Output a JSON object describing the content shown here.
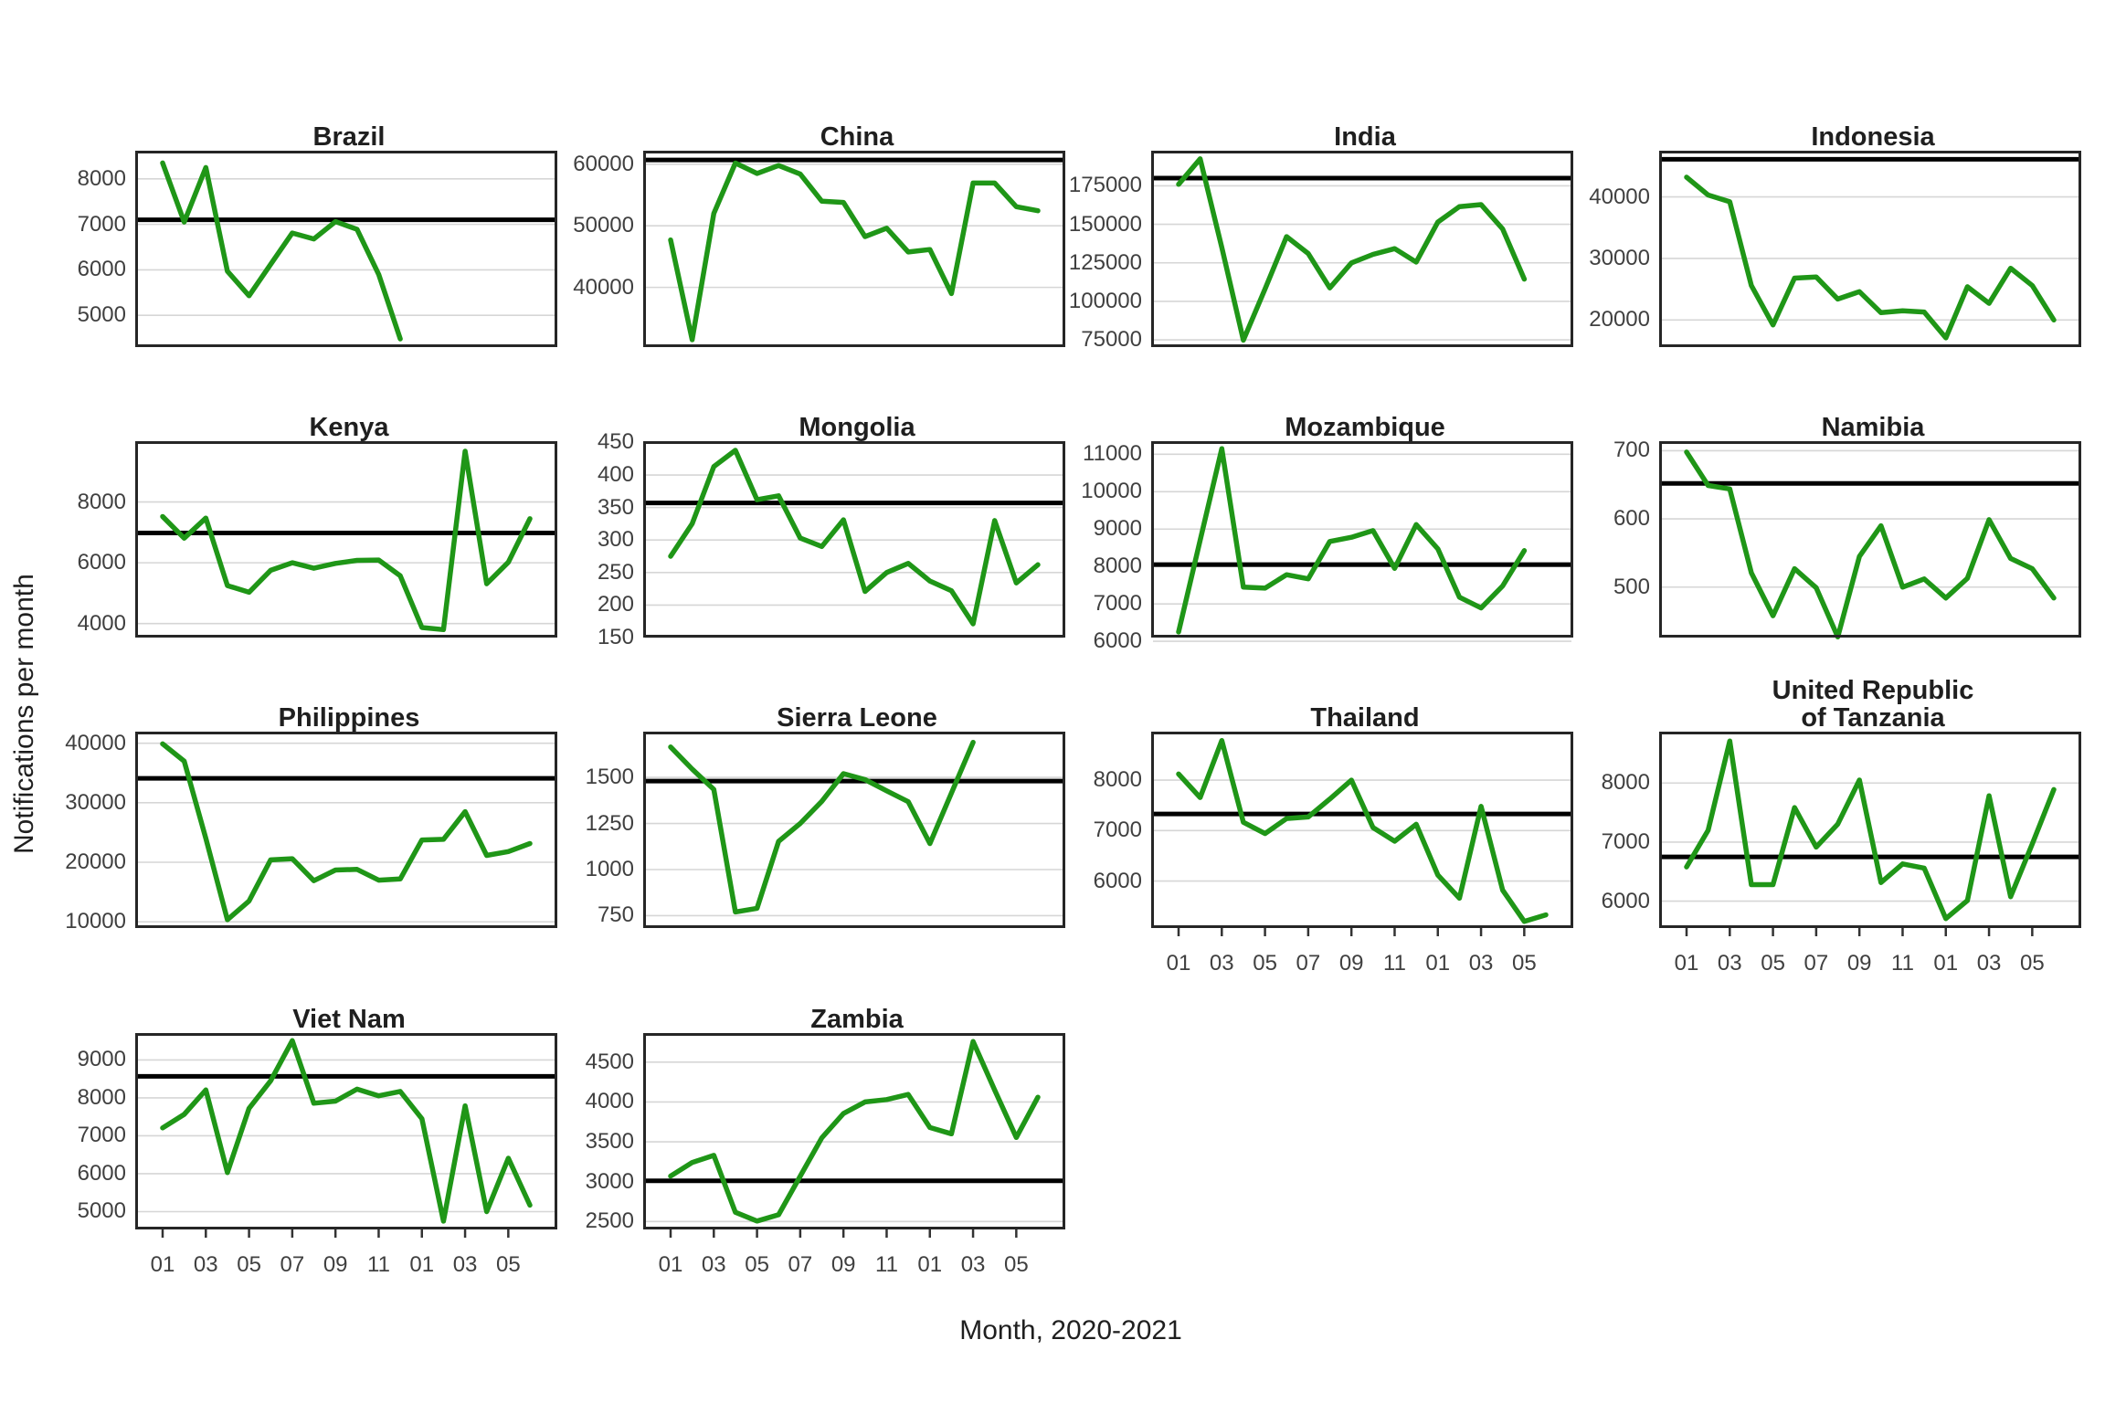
{
  "figure": {
    "y_axis_title": "Notifications per month",
    "x_axis_title": "Month, 2020-2021"
  },
  "chart_data": {
    "type": "line",
    "title": "",
    "xlabel": "Month, 2020-2021",
    "ylabel": "Notifications per month",
    "legend_position": "none",
    "grid": "horizontal-major",
    "series_color": "#1f9617",
    "baseline_color": "#000000",
    "n_slots": 18,
    "x_tick_labels": [
      "01",
      "03",
      "05",
      "07",
      "09",
      "11",
      "01",
      "03",
      "05"
    ],
    "x_tick_slots": [
      0,
      2,
      4,
      6,
      8,
      10,
      12,
      14,
      16
    ],
    "facets": [
      {
        "title_lines": [
          "Brazil"
        ],
        "yticks": [
          8000,
          7000,
          6000,
          5000
        ],
        "ylim": [
          4300,
          8620
        ],
        "baseline": 7100,
        "values": [
          8350,
          7050,
          8250,
          5970,
          5430,
          6120,
          6810,
          6680,
          7060,
          6890,
          5900,
          4480
        ],
        "show_x_axis": false
      },
      {
        "title_lines": [
          "China"
        ],
        "yticks": [
          60000,
          50000,
          40000
        ],
        "ylim": [
          30300,
          62200
        ],
        "baseline": 60700,
        "values": [
          47700,
          31500,
          52000,
          60200,
          58500,
          59800,
          58400,
          54000,
          53800,
          48250,
          49620,
          45750,
          46150,
          39000,
          56950,
          56950,
          53100,
          52450
        ],
        "show_x_axis": false
      },
      {
        "title_lines": [
          "India"
        ],
        "yticks": [
          175000,
          150000,
          125000,
          100000,
          75000
        ],
        "ylim": [
          70300,
          197800
        ],
        "baseline": 180000,
        "values": [
          176000,
          192500,
          135000,
          74800,
          108000,
          142000,
          131000,
          108700,
          125000,
          130500,
          134200,
          125500,
          151500,
          161500,
          162800,
          147000,
          114400
        ],
        "show_x_axis": false
      },
      {
        "title_lines": [
          "Indonesia"
        ],
        "yticks": [
          40000,
          30000,
          20000
        ],
        "ylim": [
          15600,
          47500
        ],
        "baseline": 46100,
        "values": [
          43200,
          40300,
          39200,
          25600,
          19200,
          26800,
          27000,
          23400,
          24600,
          21200,
          21500,
          21300,
          17100,
          25400,
          22700,
          28400,
          25600,
          20000
        ],
        "show_x_axis": false
      },
      {
        "title_lines": [
          "Kenya"
        ],
        "yticks": [
          8000,
          6000,
          4000
        ],
        "ylim": [
          3540,
          10000
        ],
        "baseline": 6980,
        "values": [
          7520,
          6810,
          7470,
          5250,
          5030,
          5750,
          6000,
          5820,
          5980,
          6080,
          6090,
          5570,
          3870,
          3800,
          9670,
          5310,
          6020,
          7450
        ],
        "show_x_axis": false
      },
      {
        "title_lines": [
          "Mongolia"
        ],
        "yticks": [
          450,
          400,
          350,
          300,
          250,
          200,
          150
        ],
        "ylim": [
          150,
          452
        ],
        "baseline": 357,
        "values": [
          275,
          325,
          413,
          438,
          362,
          368,
          303,
          290,
          331,
          221,
          250,
          264,
          237,
          222,
          171,
          330,
          234,
          262
        ],
        "show_x_axis": false
      },
      {
        "title_lines": [
          "Mozambique"
        ],
        "yticks": [
          11000,
          10000,
          9000,
          8000,
          7000,
          6000
        ],
        "ylim": [
          6100,
          11350
        ],
        "baseline": 8050,
        "values": [
          6250,
          8700,
          11150,
          7450,
          7420,
          7780,
          7670,
          8670,
          8780,
          8960,
          7950,
          9120,
          8470,
          7180,
          6890,
          7480,
          8425
        ],
        "show_x_axis": false
      },
      {
        "title_lines": [
          "Namibia"
        ],
        "yticks": [
          700,
          600,
          500
        ],
        "ylim": [
          426,
          714
        ],
        "baseline": 652,
        "values": [
          698,
          649,
          644,
          521,
          458,
          527,
          499,
          427,
          545,
          590,
          500,
          512,
          484,
          513,
          599,
          542,
          527,
          484
        ],
        "show_x_axis": false
      },
      {
        "title_lines": [
          "Philippines"
        ],
        "yticks": [
          40000,
          30000,
          20000,
          10000
        ],
        "ylim": [
          8950,
          41950
        ],
        "baseline": 34100,
        "values": [
          39900,
          37000,
          24000,
          10350,
          13500,
          20400,
          20600,
          16900,
          18700,
          18800,
          17000,
          17200,
          23750,
          23850,
          28500,
          21150,
          21800,
          23150
        ],
        "show_x_axis": false
      },
      {
        "title_lines": [
          "Sierra Leone"
        ],
        "yticks": [
          1500,
          1250,
          1000,
          750
        ],
        "ylim": [
          683,
          1748
        ],
        "baseline": 1480,
        "values": [
          1665,
          1545,
          1435,
          770,
          790,
          1153,
          1250,
          1370,
          1520,
          1488,
          1427,
          1368,
          1141,
          1415,
          1690
        ],
        "show_x_axis": false
      },
      {
        "title_lines": [
          "Thailand"
        ],
        "yticks": [
          8000,
          7000,
          6000
        ],
        "ylim": [
          5070,
          8960
        ],
        "baseline": 7330,
        "values": [
          8120,
          7655,
          8785,
          7165,
          6940,
          7240,
          7270,
          7625,
          8000,
          7060,
          6790,
          7125,
          6120,
          5660,
          7480,
          5820,
          5200,
          5330
        ],
        "show_x_axis": true
      },
      {
        "title_lines": [
          "United Republic",
          "of Tanzania"
        ],
        "yticks": [
          8000,
          7000,
          6000
        ],
        "ylim": [
          5545,
          8870
        ],
        "baseline": 6750,
        "values": [
          6580,
          7200,
          8710,
          6280,
          6280,
          7585,
          6915,
          7305,
          8050,
          6315,
          6630,
          6560,
          5705,
          6010,
          7785,
          6075,
          6970,
          7890
        ],
        "show_x_axis": true
      },
      {
        "title_lines": [
          "Viet Nam"
        ],
        "yticks": [
          9000,
          8000,
          7000,
          6000,
          5000
        ],
        "ylim": [
          4530,
          9710
        ],
        "baseline": 8570,
        "values": [
          7210,
          7565,
          8210,
          6030,
          7725,
          8450,
          9510,
          7860,
          7915,
          8230,
          8055,
          8170,
          7450,
          4750,
          7790,
          5000,
          6410,
          5170
        ],
        "show_x_axis": true
      },
      {
        "title_lines": [
          "Zambia"
        ],
        "yticks": [
          4500,
          4000,
          3500,
          3000,
          2500
        ],
        "ylim": [
          2400,
          4865
        ],
        "baseline": 3010,
        "values": [
          3070,
          3240,
          3330,
          2615,
          2505,
          2585,
          3070,
          3550,
          3855,
          4000,
          4030,
          4095,
          3680,
          3600,
          4760,
          4150,
          3555,
          4060
        ],
        "show_x_axis": true
      }
    ]
  }
}
